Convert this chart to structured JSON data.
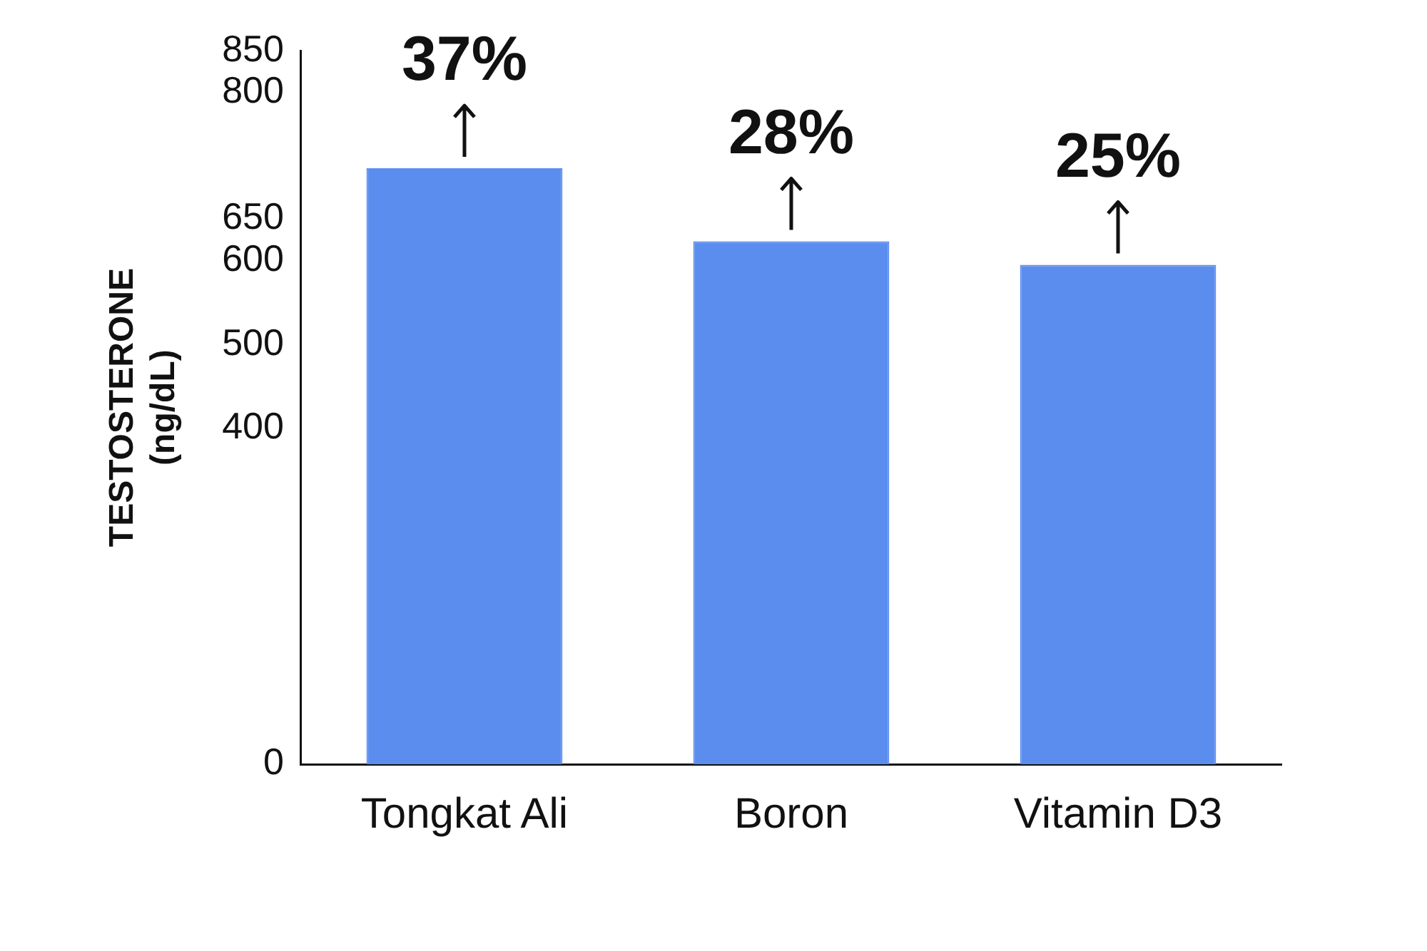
{
  "chart_data": {
    "type": "bar",
    "ylabel": "TESTOSTERONE\n(ng/dL)",
    "categories": [
      "Tongkat Ali",
      "Boron",
      "Vitamin D3"
    ],
    "values": [
      710,
      623,
      595
    ],
    "annotations": [
      {
        "text": "37%",
        "x": "Tongkat Ali",
        "y": 710
      },
      {
        "text": "28%",
        "x": "Boron",
        "y": 623
      },
      {
        "text": "25%",
        "x": "Vitamin D3",
        "y": 595
      }
    ],
    "color": "#5b8def",
    "ylim": [
      0,
      850
    ],
    "yticks": [
      0,
      400,
      500,
      600,
      650,
      800,
      850
    ],
    "grid": false,
    "legend": false
  }
}
